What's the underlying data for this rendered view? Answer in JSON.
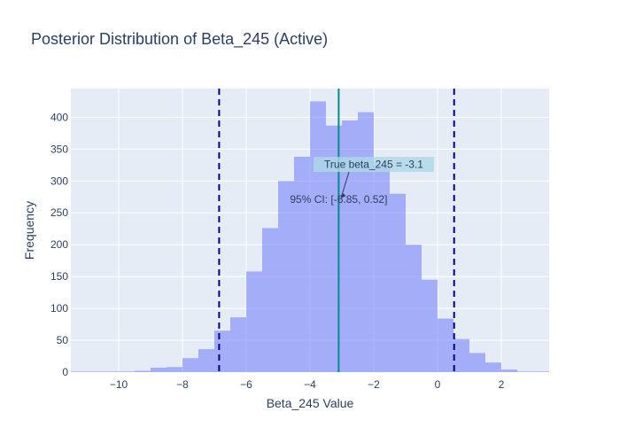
{
  "chart_data": {
    "type": "bar",
    "title": "Posterior Distribution of Beta_245 (Active)",
    "xlabel": "Beta_245 Value",
    "ylabel": "Frequency",
    "xlim": [
      -11.5,
      3.5
    ],
    "ylim": [
      0,
      445
    ],
    "xticks": [
      -10,
      -8,
      -6,
      -4,
      -2,
      0,
      2
    ],
    "yticks": [
      0,
      50,
      100,
      150,
      200,
      250,
      300,
      350,
      400
    ],
    "bin_width": 0.5,
    "bin_starts": [
      -11.5,
      -11.0,
      -10.5,
      -10.0,
      -9.5,
      -9.0,
      -8.5,
      -8.0,
      -7.5,
      -7.0,
      -6.5,
      -6.0,
      -5.5,
      -5.0,
      -4.5,
      -4.0,
      -3.5,
      -3.0,
      -2.5,
      -2.0,
      -1.5,
      -1.0,
      -0.5,
      0.0,
      0.5,
      1.0,
      1.5,
      2.0,
      2.5,
      3.0
    ],
    "counts": [
      1,
      1,
      1,
      1,
      2,
      7,
      8,
      22,
      36,
      65,
      86,
      158,
      226,
      300,
      338,
      425,
      387,
      395,
      408,
      325,
      280,
      200,
      145,
      84,
      52,
      30,
      15,
      4,
      1,
      1
    ],
    "vlines": {
      "true_value": -3.1,
      "ci_lower": -6.85,
      "ci_upper": 0.52
    },
    "annotations": [
      {
        "text": "True beta_245 = -3.1",
        "x": -2.0,
        "y": 326
      },
      {
        "text": "95% CI: [-6.85, 0.52]",
        "x": -3.1,
        "y": 271
      }
    ],
    "colors": {
      "bars": "#636efa",
      "true_line": "#008b8b",
      "ci_lines": "#00008b",
      "plot_bg": "#e5ecf6",
      "grid": "#ffffff",
      "text": "#2a3f5f",
      "true_label_bg": "#add8e6"
    },
    "grid": true,
    "legend": "none"
  }
}
